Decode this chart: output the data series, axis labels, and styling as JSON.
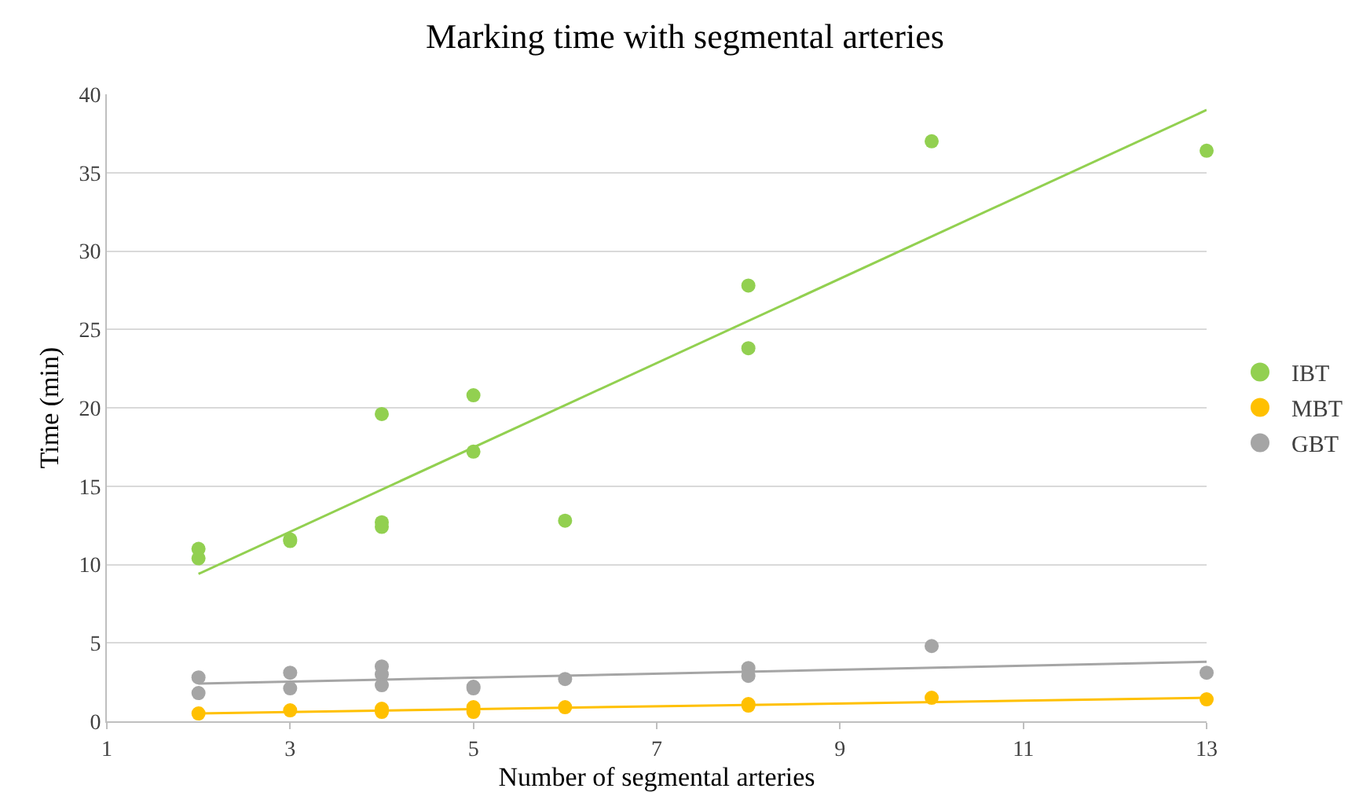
{
  "chart_data": {
    "type": "scatter",
    "title": "Marking time with segmental arteries",
    "xlabel": "Number of segmental arteries",
    "ylabel": "Time (min)",
    "xlim": [
      1,
      13
    ],
    "xticks": [
      1,
      3,
      5,
      7,
      9,
      11,
      13
    ],
    "ylim": [
      0,
      40
    ],
    "yticks": [
      0,
      5,
      10,
      15,
      20,
      25,
      30,
      35,
      40
    ],
    "grid": "y",
    "legend": "right",
    "marker": "circle",
    "series": [
      {
        "name": "IBT",
        "color": "#92d050",
        "x": [
          2,
          2,
          3,
          3,
          4,
          4,
          4,
          5,
          5,
          6,
          8,
          8,
          10,
          13
        ],
        "values": [
          11.0,
          10.4,
          11.6,
          11.5,
          19.6,
          12.7,
          12.4,
          20.8,
          17.2,
          12.8,
          27.8,
          23.8,
          37.0,
          36.4
        ]
      },
      {
        "name": "MBT",
        "color": "#ffc000",
        "x": [
          2,
          3,
          4,
          4,
          5,
          5,
          6,
          8,
          8,
          10,
          13
        ],
        "values": [
          0.5,
          0.7,
          0.6,
          0.8,
          0.6,
          0.9,
          0.9,
          1.0,
          1.1,
          1.5,
          1.4
        ]
      },
      {
        "name": "GBT",
        "color": "#a5a5a5",
        "x": [
          2,
          2,
          3,
          3,
          4,
          4,
          4,
          5,
          5,
          6,
          8,
          8,
          10,
          13
        ],
        "values": [
          2.8,
          1.8,
          3.1,
          2.1,
          3.5,
          3.0,
          2.3,
          2.2,
          2.1,
          2.7,
          3.4,
          2.9,
          4.8,
          3.1
        ]
      },
      {
        "type": "line",
        "marker": "none",
        "color": "#92d050",
        "x": [
          2,
          13
        ],
        "values": [
          9.4,
          39.0
        ]
      },
      {
        "type": "line",
        "marker": "none",
        "color": "#ffc000",
        "x": [
          2,
          13
        ],
        "values": [
          0.5,
          1.5
        ]
      },
      {
        "type": "line",
        "marker": "none",
        "color": "#a5a5a5",
        "x": [
          2,
          13
        ],
        "values": [
          2.4,
          3.8
        ]
      }
    ]
  }
}
